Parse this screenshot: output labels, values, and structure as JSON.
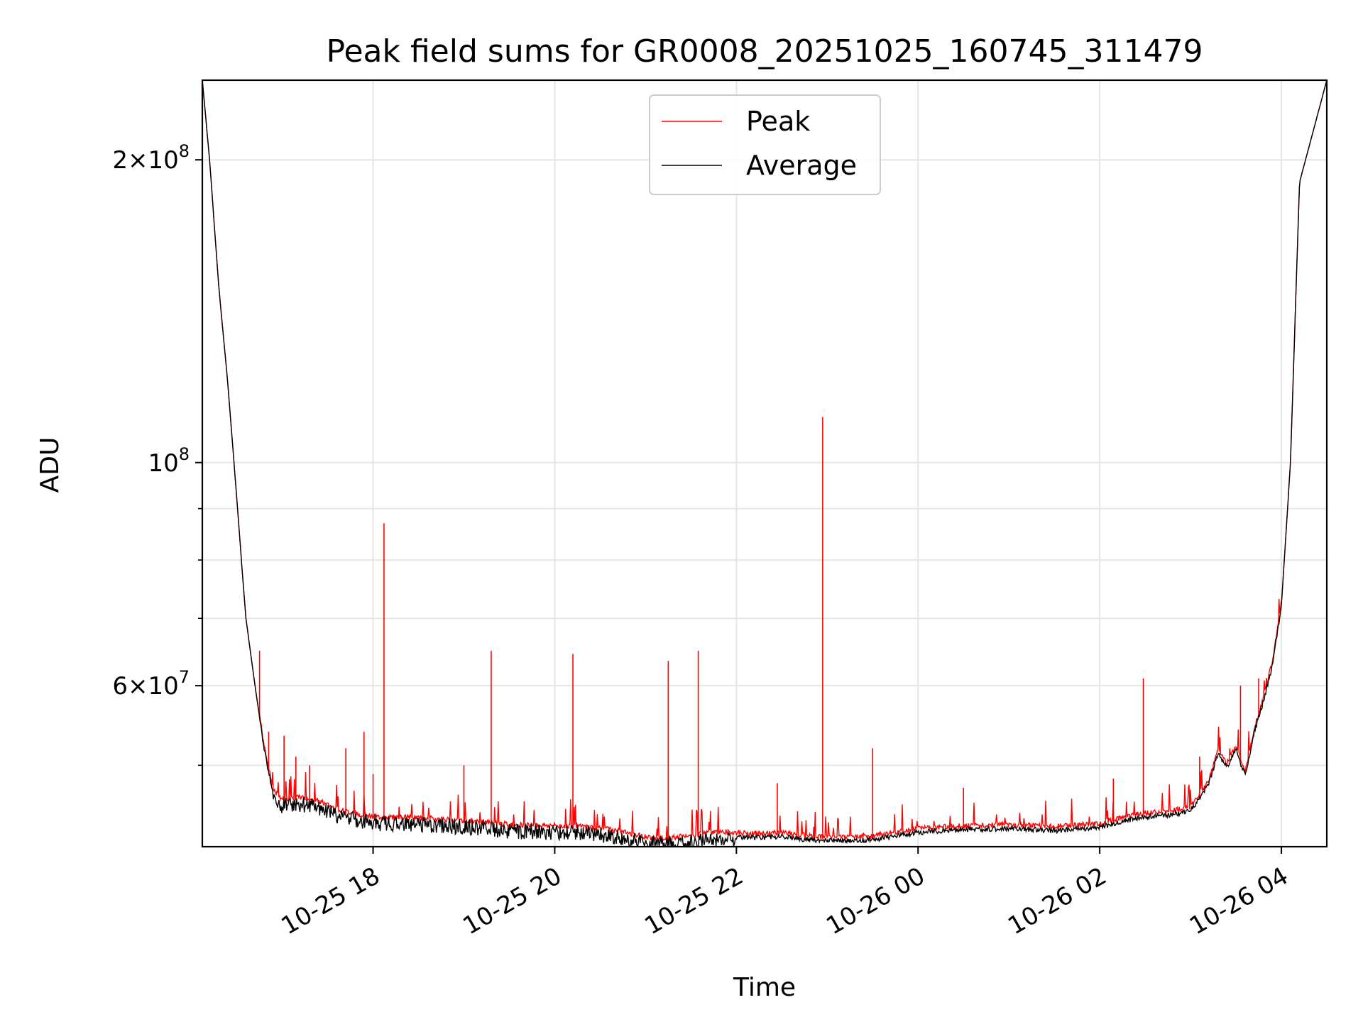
{
  "chart_data": {
    "type": "line",
    "title": "Peak field sums for GR0008_20251025_160745_311479",
    "xlabel": "Time",
    "ylabel": "ADU",
    "yscale": "log",
    "xlim_hours": [
      16.12,
      28.5
    ],
    "ylim": [
      41500000,
      240000000
    ],
    "x_ticks": [
      {
        "hour": 18,
        "label": "10-25 18"
      },
      {
        "hour": 20,
        "label": "10-25 20"
      },
      {
        "hour": 22,
        "label": "10-25 22"
      },
      {
        "hour": 24,
        "label": "10-26 00"
      },
      {
        "hour": 26,
        "label": "10-26 02"
      },
      {
        "hour": 28,
        "label": "10-26 04"
      }
    ],
    "y_major_ticks": [
      {
        "value": 200000000,
        "mantissa": "2",
        "exponent": "8"
      },
      {
        "value": 100000000,
        "mantissa": "",
        "exponent": "8"
      },
      {
        "value": 60000000,
        "mantissa": "6",
        "exponent": "7"
      }
    ],
    "y_minor_ticks": [
      50000000,
      70000000,
      80000000,
      90000000
    ],
    "times_symbol": "×",
    "tick_base": "10",
    "grid": true,
    "legend": {
      "position": "top-center"
    },
    "series": [
      {
        "name": "Peak",
        "color": "#ff0000"
      },
      {
        "name": "Average",
        "color": "#000000"
      }
    ],
    "baseline_x_hours": [
      16.12,
      16.2,
      16.3,
      16.4,
      16.5,
      16.55,
      16.6,
      16.7,
      16.8,
      16.9,
      17.0,
      17.2,
      17.4,
      17.6,
      17.8,
      18.0,
      18.5,
      19.0,
      19.5,
      20.0,
      20.3,
      20.5,
      20.8,
      21.0,
      21.2,
      21.5,
      21.8,
      22.2,
      22.5,
      22.8,
      23.0,
      23.5,
      24.0,
      24.5,
      25.0,
      25.5,
      26.0,
      26.2,
      26.5,
      26.8,
      27.0,
      27.2,
      27.3,
      27.4,
      27.5,
      27.6,
      27.7,
      27.8,
      27.9,
      28.0,
      28.1,
      28.2,
      28.5
    ],
    "baseline_avg": [
      240000000,
      200000000,
      150000000,
      120000000,
      92000000,
      80000000,
      70000000,
      60000000,
      52000000,
      47000000,
      46000000,
      46200000,
      45800000,
      45000000,
      44500000,
      44200000,
      44100000,
      43800000,
      43400000,
      43300000,
      43200000,
      43100000,
      42600000,
      42200000,
      42100000,
      42300000,
      42700000,
      42500000,
      42600000,
      42300000,
      42200000,
      42300000,
      43000000,
      43300000,
      43400000,
      43200000,
      43500000,
      44000000,
      44600000,
      44800000,
      45200000,
      48000000,
      51500000,
      50000000,
      52000000,
      49000000,
      54000000,
      58000000,
      63000000,
      72000000,
      100000000,
      190000000,
      240000000
    ],
    "peak_spikes": [
      {
        "hour": 16.75,
        "value": 65000000
      },
      {
        "hour": 16.85,
        "value": 54000000
      },
      {
        "hour": 17.02,
        "value": 53500000
      },
      {
        "hour": 17.15,
        "value": 51000000
      },
      {
        "hour": 17.3,
        "value": 50000000
      },
      {
        "hour": 17.7,
        "value": 52000000
      },
      {
        "hour": 17.9,
        "value": 54000000
      },
      {
        "hour": 18.0,
        "value": 49000000
      },
      {
        "hour": 18.12,
        "value": 87000000
      },
      {
        "hour": 19.0,
        "value": 50000000
      },
      {
        "hour": 19.3,
        "value": 65000000
      },
      {
        "hour": 20.2,
        "value": 64500000
      },
      {
        "hour": 21.25,
        "value": 63500000
      },
      {
        "hour": 21.58,
        "value": 65000000
      },
      {
        "hour": 22.45,
        "value": 48000000
      },
      {
        "hour": 22.95,
        "value": 111000000
      },
      {
        "hour": 23.5,
        "value": 52000000
      },
      {
        "hour": 24.5,
        "value": 47500000
      },
      {
        "hour": 26.15,
        "value": 48500000
      },
      {
        "hour": 26.48,
        "value": 61000000
      },
      {
        "hour": 27.1,
        "value": 51000000
      },
      {
        "hour": 27.55,
        "value": 60000000
      },
      {
        "hour": 27.75,
        "value": 61000000
      }
    ]
  }
}
